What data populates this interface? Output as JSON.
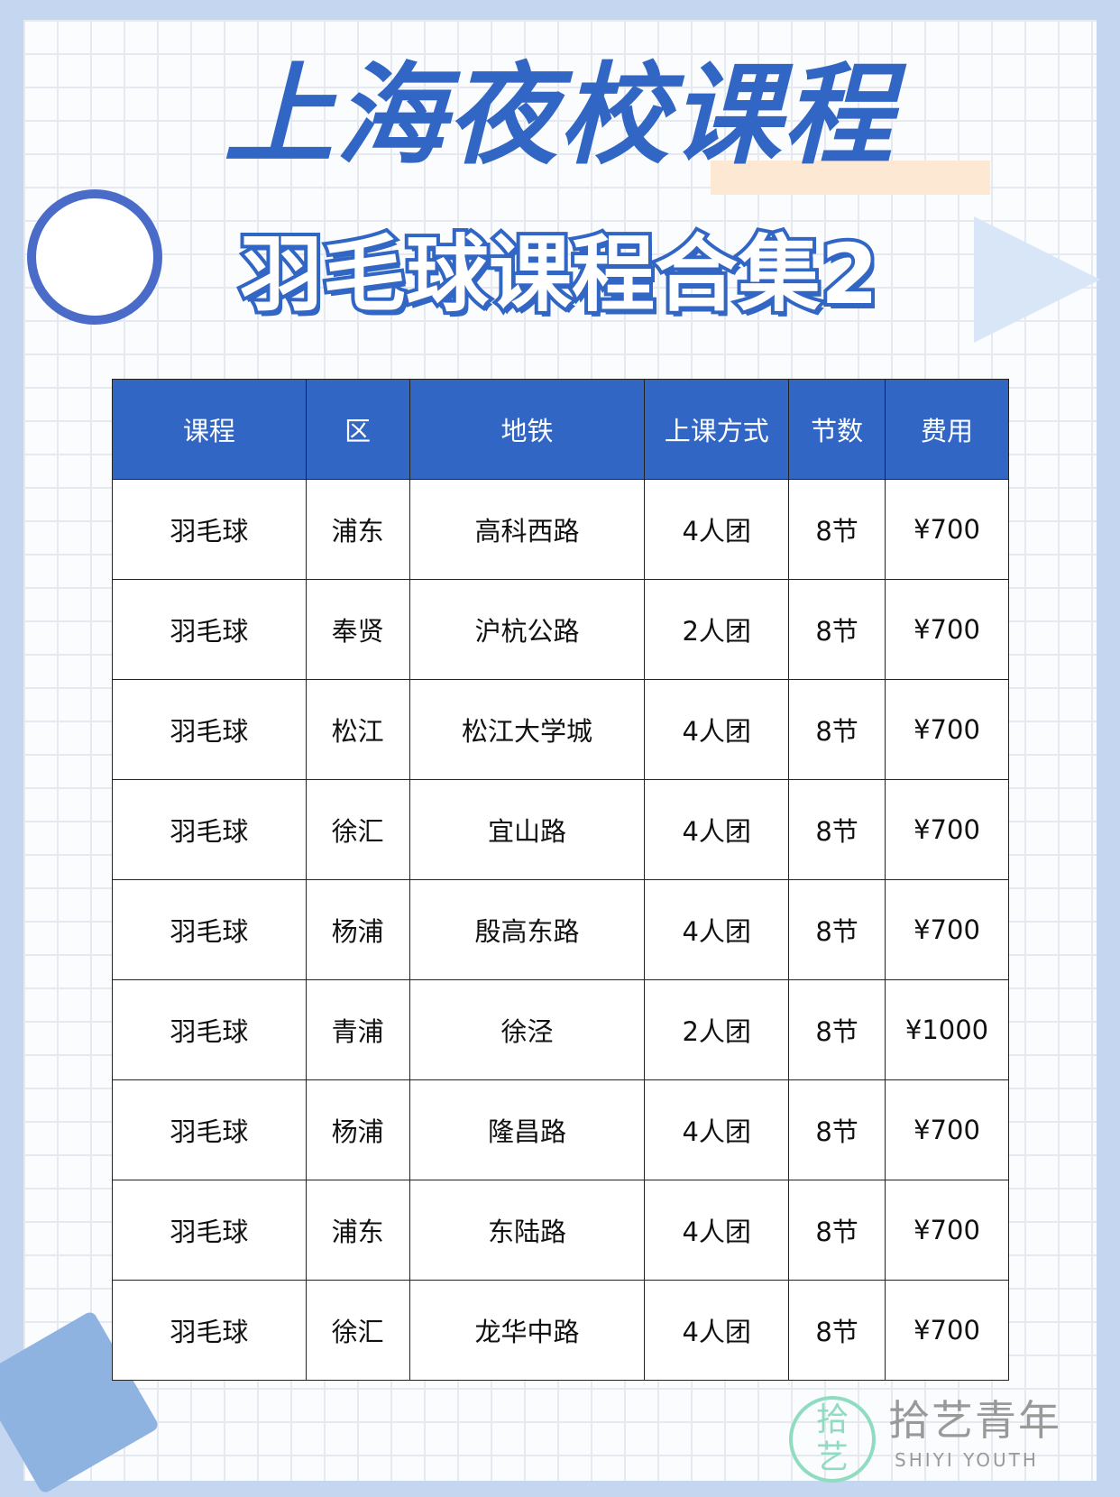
{
  "title": "上海夜校课程",
  "subtitle": "羽毛球课程合集2",
  "colors": {
    "accent": "#3266c4",
    "frame": "#c5d6f1",
    "watermark": "#8fdcc0"
  },
  "table": {
    "headers": [
      "课程",
      "区",
      "地铁",
      "上课方式",
      "节数",
      "费用"
    ],
    "rows": [
      [
        "羽毛球",
        "浦东",
        "高科西路",
        "4人团",
        "8节",
        "¥700"
      ],
      [
        "羽毛球",
        "奉贤",
        "沪杭公路",
        "2人团",
        "8节",
        "¥700"
      ],
      [
        "羽毛球",
        "松江",
        "松江大学城",
        "4人团",
        "8节",
        "¥700"
      ],
      [
        "羽毛球",
        "徐汇",
        "宜山路",
        "4人团",
        "8节",
        "¥700"
      ],
      [
        "羽毛球",
        "杨浦",
        "殷高东路",
        "4人团",
        "8节",
        "¥700"
      ],
      [
        "羽毛球",
        "青浦",
        "徐泾",
        "2人团",
        "8节",
        "¥1000"
      ],
      [
        "羽毛球",
        "杨浦",
        "隆昌路",
        "4人团",
        "8节",
        "¥700"
      ],
      [
        "羽毛球",
        "浦东",
        "东陆路",
        "4人团",
        "8节",
        "¥700"
      ],
      [
        "羽毛球",
        "徐汇",
        "龙华中路",
        "4人团",
        "8节",
        "¥700"
      ]
    ]
  },
  "watermark": {
    "logo": "拾艺",
    "name": "拾艺青年",
    "name_en": "SHIYI YOUTH"
  },
  "decorations": [
    "alarm-clock-icon",
    "megaphone-icon",
    "book-icon",
    "fountain-pen-icon",
    "arrow-icon",
    "lightning-icon"
  ]
}
